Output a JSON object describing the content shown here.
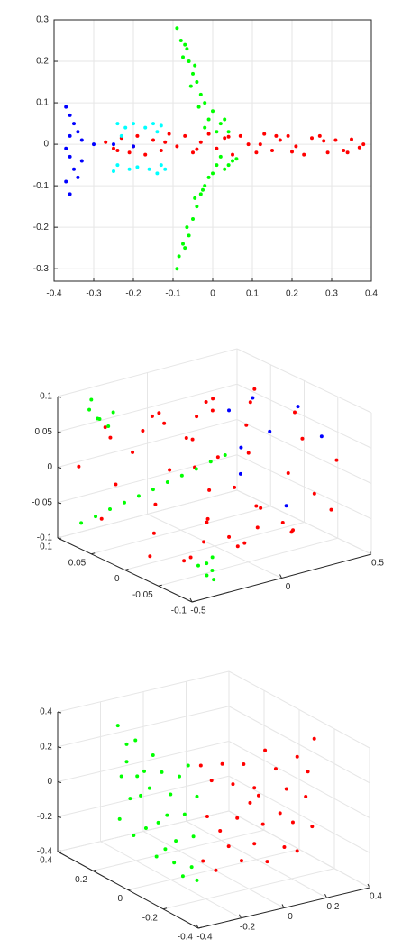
{
  "chart_data": [
    {
      "type": "scatter",
      "xlim": [
        -0.4,
        0.4
      ],
      "ylim": [
        -0.33,
        0.3
      ],
      "xticks": [
        -0.4,
        -0.3,
        -0.2,
        -0.1,
        0,
        0.1,
        0.2,
        0.3,
        0.4
      ],
      "yticks": [
        -0.3,
        -0.2,
        -0.1,
        0,
        0.1,
        0.2,
        0.3
      ],
      "grid": true,
      "series": [
        {
          "color": "#ff0000",
          "x": [
            -0.27,
            -0.25,
            -0.23,
            -0.21,
            -0.19,
            -0.17,
            -0.15,
            -0.13,
            -0.11,
            -0.09,
            -0.07,
            -0.05,
            -0.03,
            -0.01,
            0.01,
            0.03,
            0.05,
            0.07,
            0.09,
            0.11,
            0.13,
            0.15,
            0.17,
            0.19,
            0.21,
            0.23,
            0.25,
            0.27,
            0.29,
            0.31,
            0.33,
            0.35,
            0.37,
            0.38,
            -0.2,
            -0.12,
            -0.04,
            0.04,
            0.12,
            0.2,
            0.28,
            0.34,
            -0.24,
            0.16
          ],
          "y": [
            0.005,
            -0.01,
            0.015,
            -0.02,
            0.02,
            -0.025,
            0.01,
            -0.015,
            0.025,
            -0.005,
            0.02,
            -0.02,
            0.005,
            0.025,
            -0.01,
            0.015,
            -0.025,
            0.02,
            0.0,
            -0.02,
            0.025,
            -0.015,
            0.01,
            0.02,
            -0.005,
            -0.025,
            0.015,
            0.02,
            -0.02,
            0.01,
            -0.015,
            0.012,
            -0.008,
            0.0,
            -0.005,
            0.005,
            -0.012,
            0.018,
            0.0,
            -0.018,
            0.008,
            -0.02,
            -0.015,
            0.02
          ]
        },
        {
          "color": "#00ff00",
          "x": [
            -0.09,
            -0.08,
            -0.07,
            -0.075,
            -0.06,
            -0.05,
            -0.04,
            -0.055,
            -0.03,
            -0.02,
            -0.035,
            0,
            -0.01,
            0.02,
            -0.02,
            0.04,
            0.01,
            -0.065,
            -0.045,
            0.03,
            -0.09,
            -0.085,
            -0.07,
            -0.06,
            -0.065,
            -0.05,
            -0.04,
            -0.03,
            -0.045,
            -0.02,
            -0.01,
            0,
            0.01,
            0.03,
            0.05,
            0.02,
            0.04,
            -0.075,
            -0.025,
            0.06
          ],
          "y": [
            0.28,
            0.25,
            0.24,
            0.21,
            0.2,
            0.17,
            0.15,
            0.14,
            0.12,
            0.1,
            0.09,
            0.08,
            0.06,
            0.05,
            0.04,
            0.03,
            0.03,
            0.23,
            0.19,
            0.06,
            -0.3,
            -0.27,
            -0.25,
            -0.22,
            -0.2,
            -0.18,
            -0.15,
            -0.12,
            -0.13,
            -0.1,
            -0.08,
            -0.07,
            -0.05,
            -0.06,
            -0.04,
            -0.03,
            -0.05,
            -0.24,
            -0.11,
            -0.035
          ]
        },
        {
          "color": "#0000ff",
          "x": [
            -0.37,
            -0.36,
            -0.35,
            -0.36,
            -0.34,
            -0.33,
            -0.3,
            -0.25,
            -0.2,
            -0.36,
            -0.35,
            -0.37,
            -0.36,
            -0.34,
            -0.33,
            -0.37
          ],
          "y": [
            0.09,
            0.07,
            0.05,
            0.02,
            0.03,
            0.01,
            0,
            0,
            -0.005,
            -0.03,
            -0.06,
            -0.09,
            -0.12,
            -0.08,
            -0.04,
            -0.01
          ]
        },
        {
          "color": "#00ffff",
          "x": [
            -0.24,
            -0.22,
            -0.2,
            -0.17,
            -0.15,
            -0.13,
            -0.14,
            -0.23,
            -0.24,
            -0.21,
            -0.19,
            -0.16,
            -0.13,
            -0.14,
            -0.25,
            -0.12
          ],
          "y": [
            0.05,
            0.04,
            0.05,
            0.04,
            0.05,
            0.045,
            0.03,
            0.02,
            -0.05,
            -0.06,
            -0.055,
            -0.06,
            -0.05,
            -0.07,
            -0.065,
            -0.06
          ]
        }
      ]
    },
    {
      "type": "scatter3d",
      "xlim": [
        -0.5,
        0.5
      ],
      "ylim": [
        -0.1,
        0.1
      ],
      "zlim": [
        -0.1,
        0.1
      ],
      "xticks": [
        -0.5,
        0,
        0.5
      ],
      "yticks": [
        -0.1,
        -0.05,
        0,
        0.05,
        0.1
      ],
      "zticks": [
        -0.1,
        -0.05,
        0,
        0.05,
        0.1
      ],
      "grid": true,
      "series": [
        {
          "color": "#ff0000",
          "x": [
            -0.42,
            -0.37,
            -0.4,
            -0.35,
            -0.38,
            -0.41,
            -0.36,
            -0.39,
            -0.27,
            -0.22,
            -0.25,
            -0.2,
            -0.23,
            -0.26,
            -0.21,
            -0.24,
            -0.12,
            -0.07,
            -0.1,
            -0.05,
            -0.08,
            -0.11,
            -0.06,
            -0.09,
            0.03,
            0.08,
            0.05,
            0.1,
            0.07,
            0.04,
            0.09,
            0.06,
            0.18,
            0.23,
            0.2,
            0.25,
            0.22,
            0.19,
            0.24,
            0.21,
            0.3,
            0.35,
            0.32,
            0.37,
            0.34,
            0.31,
            0.36,
            0.33
          ],
          "y": [
            0.09,
            0.064,
            0,
            -0.064,
            -0.09,
            -0.064,
            0,
            0.064,
            0.083,
            0.034,
            -0.034,
            -0.083,
            -0.083,
            -0.034,
            0.034,
            0.083,
            0.09,
            0.064,
            0,
            -0.064,
            -0.09,
            -0.064,
            0,
            0.064,
            0.083,
            0.034,
            -0.034,
            -0.083,
            -0.083,
            -0.034,
            0.034,
            0.083,
            0.09,
            0.064,
            0,
            -0.064,
            -0.09,
            -0.064,
            0,
            0.064,
            0.083,
            0.034,
            -0.034,
            -0.083,
            -0.083,
            -0.034,
            0.034,
            0.083
          ],
          "z": [
            0,
            0.064,
            0.09,
            0.064,
            0,
            -0.064,
            -0.09,
            -0.064,
            0.034,
            0.083,
            0.083,
            0.034,
            -0.034,
            -0.083,
            -0.083,
            -0.034,
            0,
            0.064,
            0.09,
            0.064,
            0,
            -0.064,
            -0.09,
            -0.064,
            0.034,
            0.083,
            0.083,
            0.034,
            -0.034,
            -0.083,
            -0.083,
            -0.034,
            0,
            0.064,
            0.09,
            0.064,
            0,
            -0.064,
            -0.09,
            -0.064,
            0.034,
            0.083,
            0.083,
            0.034,
            -0.034,
            -0.083,
            -0.083,
            -0.034
          ]
        },
        {
          "color": "#0000ff",
          "x": [
            0.4,
            0.41,
            0.39,
            0.42,
            0.38,
            0.4,
            0.37,
            0.41
          ],
          "y": [
            0.05,
            0.07,
            -0.02,
            0.03,
            0.08,
            0.0,
            0.06,
            -0.05
          ],
          "z": [
            0.06,
            -0.02,
            0.08,
            0.02,
            0.03,
            -0.07,
            -0.05,
            0.05
          ]
        },
        {
          "color": "#00ff00",
          "x": [
            -0.5,
            -0.431,
            -0.362,
            -0.293,
            -0.224,
            -0.155,
            -0.086,
            -0.017,
            0.052,
            0.121,
            0.19,
            -0.36,
            -0.38,
            -0.33,
            -0.35,
            -0.39,
            -0.34,
            -0.37,
            -0.35,
            -0.39,
            -0.36,
            -0.33,
            -0.38
          ],
          "y": [
            0.065,
            0.062,
            0.059,
            0.056,
            0.053,
            0.05,
            0.047,
            0.044,
            0.041,
            0.038,
            0.035,
            0.075,
            0.085,
            0.07,
            0.09,
            0.07,
            0.06,
            -0.087,
            -0.09,
            -0.08,
            -0.095,
            -0.085,
            -0.09
          ],
          "z": [
            -0.063,
            -0.057,
            -0.05,
            -0.044,
            -0.038,
            -0.032,
            -0.025,
            -0.019,
            -0.013,
            -0.006,
            0,
            0.07,
            0.08,
            0.06,
            0.09,
            0.075,
            0.085,
            -0.06,
            -0.07,
            -0.065,
            -0.08,
            -0.055,
            -0.075
          ]
        }
      ]
    },
    {
      "type": "scatter3d",
      "xlim": [
        -0.4,
        0.4
      ],
      "ylim": [
        -0.4,
        0.4
      ],
      "zlim": [
        -0.4,
        0.4
      ],
      "xticks": [
        -0.4,
        -0.2,
        0,
        0.2,
        0.4
      ],
      "yticks": [
        -0.4,
        -0.2,
        0,
        0.2,
        0.4
      ],
      "zticks": [
        -0.4,
        -0.2,
        0,
        0.2,
        0.4
      ],
      "grid": true,
      "series": [
        {
          "color": "#00ff00",
          "x": [
            -0.16,
            -0.16,
            -0.16,
            -0.16,
            -0.16,
            -0.16,
            -0.16,
            -0.16,
            -0.16,
            -0.16,
            -0.16,
            -0.16,
            -0.16,
            -0.16,
            -0.16,
            -0.16,
            -0.16,
            -0.16,
            -0.16,
            -0.16,
            -0.16,
            -0.16,
            -0.16,
            -0.16,
            -0.16,
            -0.16,
            -0.16,
            -0.16,
            -0.16,
            -0.16
          ],
          "y": [
            0.35,
            0.3,
            0.25,
            0.2,
            0.15,
            0.1,
            0.05,
            0,
            -0.05,
            -0.1,
            0.33,
            0.28,
            0.22,
            0.17,
            0.12,
            0.07,
            0.02,
            -0.03,
            -0.08,
            0.34,
            0.26,
            0.19,
            0.13,
            0.08,
            0.03,
            -0.02,
            -0.07,
            -0.1,
            0.3,
            0.24
          ],
          "z": [
            0.28,
            0.2,
            0.25,
            0.1,
            0.22,
            0.15,
            0.05,
            0.18,
            0.27,
            0.12,
            0,
            -0.1,
            -0.05,
            0.02,
            -0.15,
            -0.08,
            -0.2,
            -0.02,
            -0.12,
            -0.25,
            -0.3,
            -0.22,
            -0.35,
            -0.28,
            -0.33,
            -0.38,
            -0.3,
            -0.36,
            0.1,
            0.05
          ]
        },
        {
          "color": "#ff0000",
          "x": [
            -0.15,
            -0.1,
            -0.05,
            0,
            0.05,
            0.1,
            0.15,
            0.2,
            0.25,
            0.3,
            0.35,
            0.38,
            -0.12,
            -0.06,
            0.02,
            0.08,
            0.14,
            0.22,
            0.28,
            0.34,
            -0.14,
            -0.08,
            -0.02,
            0.04,
            0.1,
            0.16,
            0.24,
            0.3,
            0.37,
            0.12
          ],
          "y": [
            -0.11,
            -0.11,
            -0.11,
            -0.11,
            -0.11,
            -0.11,
            -0.11,
            -0.11,
            -0.11,
            -0.11,
            -0.11,
            -0.11,
            -0.11,
            -0.11,
            -0.11,
            -0.11,
            -0.11,
            -0.11,
            -0.11,
            -0.11,
            -0.11,
            -0.11,
            -0.11,
            -0.11,
            -0.11,
            -0.11,
            -0.11,
            -0.11,
            -0.11,
            -0.11
          ],
          "z": [
            0.3,
            0.2,
            0.28,
            0.15,
            0.25,
            0.1,
            0.3,
            0.18,
            0.05,
            0.22,
            0.12,
            0.3,
            0,
            -0.1,
            -0.05,
            0.02,
            -0.12,
            -0.08,
            -0.15,
            -0.02,
            -0.25,
            -0.32,
            -0.2,
            -0.3,
            -0.22,
            -0.34,
            -0.28,
            -0.32,
            -0.2,
            0.05
          ]
        }
      ]
    }
  ]
}
